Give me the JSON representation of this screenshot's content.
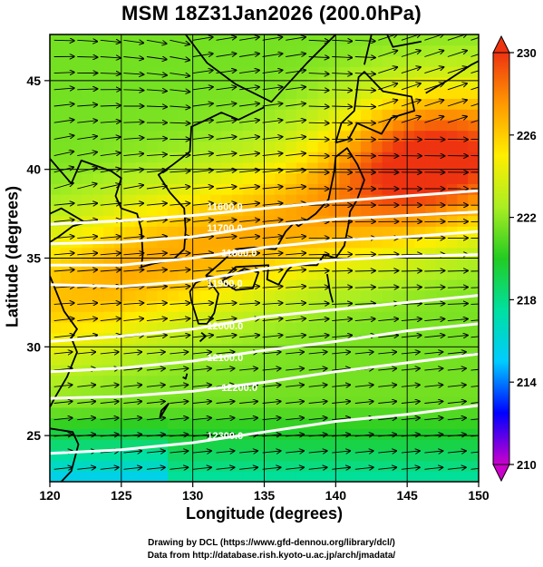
{
  "title": "MSM 18Z31Jan2026 (200.0hPa)",
  "x_axis": {
    "label": "Longitude (degrees)",
    "min": 120,
    "max": 150,
    "ticks": [
      120,
      125,
      130,
      135,
      140,
      145,
      150
    ]
  },
  "y_axis": {
    "label": "Latitude  (degrees)",
    "min": 22.4,
    "max": 47.6,
    "ticks": [
      25,
      30,
      35,
      40,
      45
    ]
  },
  "colorbar": {
    "min": 210,
    "max": 230,
    "ticks": [
      210,
      214,
      218,
      222,
      226,
      230
    ],
    "colors": [
      "#cc00cc",
      "#0000ff",
      "#00ccff",
      "#00e0a0",
      "#22cc22",
      "#aaee22",
      "#ffee00",
      "#ff9900",
      "#ee3311"
    ]
  },
  "height_contours": [
    {
      "label": "11600.0",
      "anchor_lon": 131,
      "anchor_lat": 37.7,
      "points": [
        [
          120,
          36.9
        ],
        [
          125,
          37.1
        ],
        [
          130,
          37.4
        ],
        [
          135,
          37.8
        ],
        [
          140,
          38.2
        ],
        [
          145,
          38.5
        ],
        [
          150,
          38.8
        ]
      ]
    },
    {
      "label": "11700.0",
      "anchor_lon": 131,
      "anchor_lat": 36.5,
      "points": [
        [
          120,
          35.8
        ],
        [
          125,
          35.9
        ],
        [
          130,
          36.2
        ],
        [
          135,
          36.8
        ],
        [
          140,
          37.2
        ],
        [
          145,
          37.4
        ],
        [
          150,
          37.6
        ]
      ]
    },
    {
      "label": "11800.0",
      "anchor_lon": 132,
      "anchor_lat": 35.1,
      "points": [
        [
          120,
          34.6
        ],
        [
          125,
          34.6
        ],
        [
          130,
          35.0
        ],
        [
          135,
          35.6
        ],
        [
          140,
          36.0
        ],
        [
          145,
          36.2
        ],
        [
          150,
          36.5
        ]
      ]
    },
    {
      "label": "11900.0",
      "anchor_lon": 131,
      "anchor_lat": 33.4,
      "points": [
        [
          120,
          33.5
        ],
        [
          125,
          33.4
        ],
        [
          130,
          33.7
        ],
        [
          135,
          34.4
        ],
        [
          140,
          34.9
        ],
        [
          145,
          35.1
        ],
        [
          150,
          35.2
        ]
      ]
    },
    {
      "label": "12000.0",
      "anchor_lon": 131,
      "anchor_lat": 31.0,
      "points": [
        [
          120,
          30.3
        ],
        [
          125,
          30.6
        ],
        [
          130,
          31.0
        ],
        [
          135,
          31.7
        ],
        [
          140,
          32.1
        ],
        [
          145,
          32.5
        ],
        [
          150,
          32.9
        ]
      ]
    },
    {
      "label": "12100.0",
      "anchor_lon": 131,
      "anchor_lat": 29.2,
      "points": [
        [
          120,
          28.6
        ],
        [
          125,
          28.8
        ],
        [
          130,
          29.2
        ],
        [
          135,
          29.8
        ],
        [
          140,
          30.3
        ],
        [
          145,
          30.9
        ],
        [
          150,
          31.3
        ]
      ]
    },
    {
      "label": "12200.0",
      "anchor_lon": 132,
      "anchor_lat": 27.5,
      "points": [
        [
          120,
          27.1
        ],
        [
          125,
          27.2
        ],
        [
          130,
          27.5
        ],
        [
          135,
          28.0
        ],
        [
          140,
          28.6
        ],
        [
          145,
          29.1
        ],
        [
          150,
          29.6
        ]
      ]
    },
    {
      "label": "12300.0",
      "anchor_lon": 131,
      "anchor_lat": 24.8,
      "points": [
        [
          120,
          24.0
        ],
        [
          125,
          24.2
        ],
        [
          130,
          24.6
        ],
        [
          135,
          25.2
        ],
        [
          140,
          25.8
        ],
        [
          145,
          26.2
        ],
        [
          150,
          26.7
        ]
      ]
    }
  ],
  "credits": [
    "Drawing by DCL (https://www.gfd-dennou.org/library/dcl/)",
    "Data from http://database.rish.kyoto-u.ac.jp/arch/jmadata/"
  ]
}
